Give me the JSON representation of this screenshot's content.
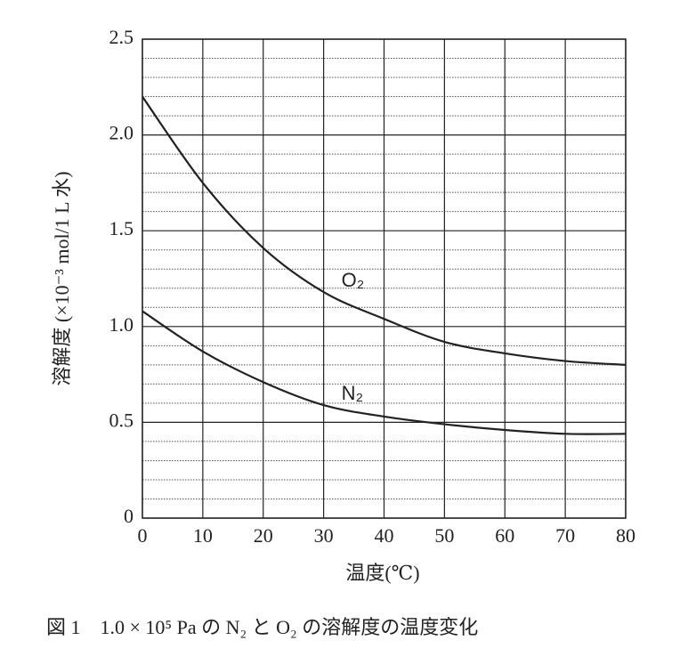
{
  "chart_data": {
    "type": "line",
    "y_label": "溶解度 (×10⁻³ mol/1 L 水)",
    "x_label": "温度(℃)",
    "caption": "図 1　1.0 × 10⁵ Pa の N₂ と O₂ の溶解度の温度変化",
    "x": [
      0,
      10,
      20,
      30,
      40,
      50,
      60,
      70,
      80
    ],
    "series": [
      {
        "name": "O₂",
        "color": "#222222",
        "values": [
          2.2,
          1.75,
          1.41,
          1.18,
          1.04,
          0.92,
          0.86,
          0.82,
          0.8
        ]
      },
      {
        "name": "N₂",
        "color": "#222222",
        "values": [
          1.08,
          0.87,
          0.71,
          0.59,
          0.53,
          0.49,
          0.46,
          0.44,
          0.44
        ]
      }
    ],
    "xlim": [
      0,
      80
    ],
    "xticks": [
      0,
      10,
      20,
      30,
      40,
      50,
      60,
      70,
      80
    ],
    "ylim": [
      0,
      2.5
    ],
    "yticks": [
      0,
      0.5,
      {
        "value": 1,
        "label": "1.0"
      },
      1.5,
      {
        "value": 2,
        "label": "2.0"
      },
      2.5
    ],
    "yminor": [
      0.1,
      0.2,
      0.3,
      0.4,
      0.6,
      0.7,
      0.8,
      0.9,
      1.1,
      1.2,
      1.3,
      1.4,
      1.6,
      1.7,
      1.8,
      1.9,
      2.1,
      2.2,
      2.3,
      2.4
    ],
    "grid": true
  }
}
